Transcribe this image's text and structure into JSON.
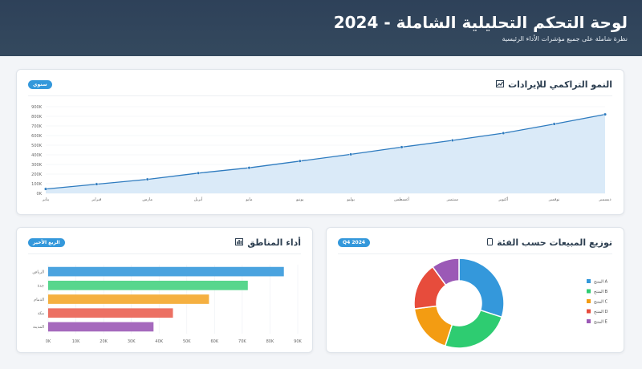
{
  "header": {
    "title": "لوحة التحكم التحليلية الشاملة - 2024",
    "subtitle": "نظرة شاملة على جميع مؤشرات الأداء الرئيسية"
  },
  "cards": {
    "growth": {
      "title": "النمو التراكمي للإيرادات",
      "icon": "chart-up-icon",
      "badge": "سنوي"
    },
    "regions": {
      "title": "أداء المناطق",
      "icon": "bar-chart-icon",
      "badge": "الربع الأخير"
    },
    "products": {
      "title": "توزيع المبيعات حسب الفئة",
      "icon": "tablet-icon",
      "badge": "Q4 2024"
    }
  },
  "colors": {
    "line": "#2e7bbf",
    "area": "#d6e8f7",
    "bars": [
      "#4aa3df",
      "#58d68d",
      "#f5b041",
      "#ec7063",
      "#a569bd"
    ],
    "donut": [
      "#3498db",
      "#2ecc71",
      "#f39c12",
      "#e74c3c",
      "#9b59b6"
    ]
  },
  "chart_data": [
    {
      "type": "area",
      "categories": [
        "يناير",
        "فبراير",
        "مارس",
        "أبريل",
        "مايو",
        "يونيو",
        "يوليو",
        "أغسطس",
        "سبتمبر",
        "أكتوبر",
        "نوفمبر",
        "ديسمبر"
      ],
      "values": [
        45000,
        95000,
        145000,
        210000,
        265000,
        335000,
        405000,
        480000,
        550000,
        625000,
        720000,
        820000
      ],
      "yticks": [
        "0K",
        "100K",
        "200K",
        "300K",
        "400K",
        "500K",
        "600K",
        "700K",
        "800K",
        "900K"
      ],
      "ylim": [
        0,
        900000
      ],
      "grid": true,
      "legend": "none"
    },
    {
      "type": "bar",
      "orientation": "horizontal",
      "categories": [
        "الرياض",
        "جدة",
        "الدمام",
        "مكة",
        "المدينة"
      ],
      "values": [
        85000,
        72000,
        58000,
        45000,
        38000
      ],
      "xticks": [
        "0K",
        "10K",
        "20K",
        "30K",
        "40K",
        "50K",
        "60K",
        "70K",
        "80K",
        "90K"
      ],
      "xlim": [
        0,
        90000
      ],
      "grid": true,
      "legend": "none"
    },
    {
      "type": "pie",
      "style": "doughnut",
      "categories": [
        "المنتج A",
        "المنتج B",
        "المنتج C",
        "المنتج D",
        "المنتج E"
      ],
      "values": [
        30,
        25,
        18,
        17,
        10
      ],
      "legend": "right"
    }
  ]
}
